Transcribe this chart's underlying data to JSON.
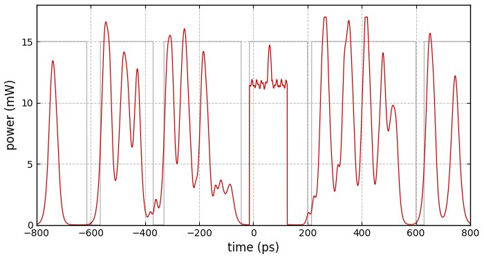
{
  "xlabel": "time (ps)",
  "ylabel": "power (mW)",
  "xlim": [
    -800,
    800
  ],
  "ylim": [
    0,
    18
  ],
  "yticks": [
    0,
    5,
    10,
    15
  ],
  "xticks": [
    -800,
    -600,
    -400,
    -200,
    0,
    200,
    400,
    600,
    800
  ],
  "gray_color": "#aaaaaa",
  "red_color": "#cc0000",
  "bg_color": "#ffffff",
  "grid_color": "#bbbbbb",
  "figsize": [
    7.0,
    3.75
  ],
  "dpi": 100,
  "peak_power": 15.0,
  "gray_pulse_hw": 90,
  "red_sigma": 18.0,
  "red_peak": 15.5,
  "plateau_level": 11.8,
  "plateau_start": -15,
  "plateau_end": 115
}
